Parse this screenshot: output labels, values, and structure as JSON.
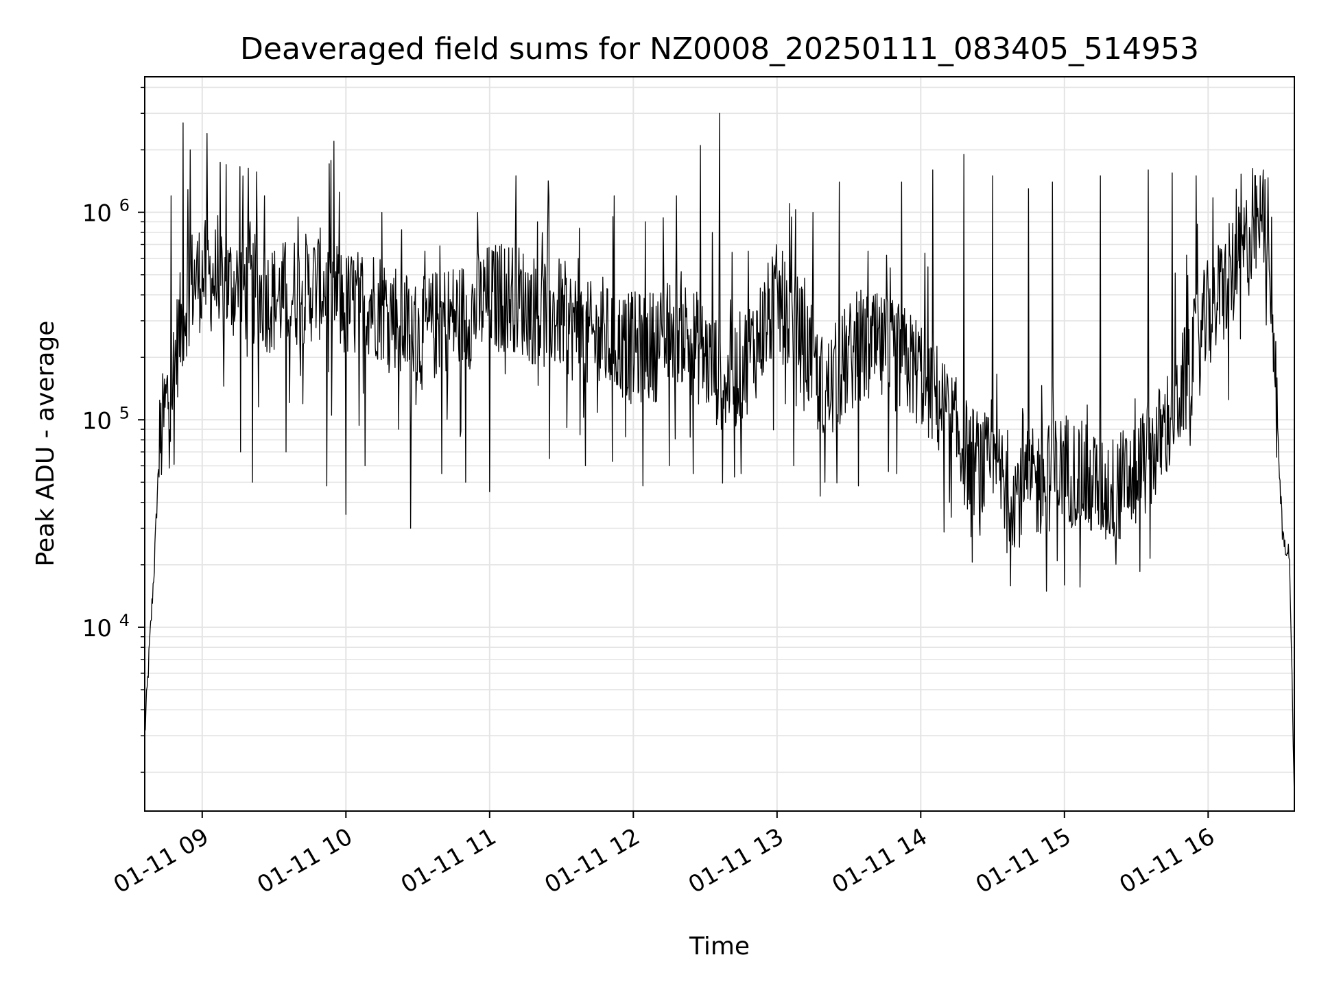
{
  "chart_data": {
    "type": "line",
    "title": "Deaveraged field sums for NZ0008_20250111_083405_514953",
    "xlabel": "Time",
    "ylabel": "Peak ADU - average",
    "x_scale": "time",
    "y_scale": "log",
    "xlim": [
      "2025-01-11 08:36",
      "2025-01-11 16:36"
    ],
    "ylim": [
      1300,
      4500000
    ],
    "grid": true,
    "x_ticks": [
      "01-11 09",
      "01-11 10",
      "01-11 11",
      "01-11 12",
      "01-11 13",
      "01-11 14",
      "01-11 15",
      "01-11 16"
    ],
    "y_ticks": [
      {
        "value": 10000,
        "base": "10",
        "exp": "4"
      },
      {
        "value": 100000,
        "base": "10",
        "exp": "5"
      },
      {
        "value": 1000000,
        "base": "10",
        "exp": "6"
      }
    ],
    "series": [
      {
        "color": "#000000",
        "baseline": [
          [
            "08:36",
            3000
          ],
          [
            "08:38",
            8000
          ],
          [
            "08:40",
            20000
          ],
          [
            "08:42",
            70000
          ],
          [
            "08:45",
            120000
          ],
          [
            "08:48",
            170000
          ],
          [
            "08:50",
            250000
          ],
          [
            "08:55",
            450000
          ],
          [
            "09:00",
            500000
          ],
          [
            "09:05",
            480000
          ],
          [
            "09:10",
            450000
          ],
          [
            "09:20",
            430000
          ],
          [
            "09:30",
            380000
          ],
          [
            "09:40",
            420000
          ],
          [
            "09:50",
            450000
          ],
          [
            "10:00",
            350000
          ],
          [
            "10:10",
            380000
          ],
          [
            "10:20",
            330000
          ],
          [
            "10:30",
            250000
          ],
          [
            "10:40",
            300000
          ],
          [
            "10:50",
            320000
          ],
          [
            "11:00",
            380000
          ],
          [
            "11:10",
            400000
          ],
          [
            "11:20",
            330000
          ],
          [
            "11:30",
            320000
          ],
          [
            "11:40",
            250000
          ],
          [
            "11:50",
            240000
          ],
          [
            "12:00",
            220000
          ],
          [
            "12:10",
            230000
          ],
          [
            "12:20",
            280000
          ],
          [
            "12:30",
            200000
          ],
          [
            "12:40",
            150000
          ],
          [
            "12:50",
            220000
          ],
          [
            "13:00",
            380000
          ],
          [
            "13:10",
            250000
          ],
          [
            "13:20",
            130000
          ],
          [
            "13:30",
            200000
          ],
          [
            "13:40",
            220000
          ],
          [
            "13:50",
            200000
          ],
          [
            "14:00",
            170000
          ],
          [
            "14:10",
            110000
          ],
          [
            "14:20",
            65000
          ],
          [
            "14:30",
            55000
          ],
          [
            "14:40",
            45000
          ],
          [
            "14:50",
            50000
          ],
          [
            "15:00",
            60000
          ],
          [
            "15:10",
            50000
          ],
          [
            "15:20",
            45000
          ],
          [
            "15:30",
            55000
          ],
          [
            "15:40",
            80000
          ],
          [
            "15:50",
            150000
          ],
          [
            "16:00",
            320000
          ],
          [
            "16:10",
            500000
          ],
          [
            "16:20",
            850000
          ],
          [
            "16:25",
            850000
          ],
          [
            "16:30",
            50000
          ],
          [
            "16:31",
            28000
          ],
          [
            "16:34",
            22000
          ],
          [
            "16:36",
            1400
          ]
        ],
        "spikes": [
          [
            "08:47",
            1200000
          ],
          [
            "08:52",
            2700000
          ],
          [
            "08:55",
            2000000
          ],
          [
            "09:02",
            2400000
          ],
          [
            "09:10",
            1700000
          ],
          [
            "09:20",
            900000
          ],
          [
            "09:26",
            1200000
          ],
          [
            "09:40",
            950000
          ],
          [
            "09:55",
            2200000
          ],
          [
            "10:15",
            1000000
          ],
          [
            "10:33",
            650000
          ],
          [
            "10:40",
            700000
          ],
          [
            "10:55",
            1000000
          ],
          [
            "11:05",
            700000
          ],
          [
            "11:11",
            1500000
          ],
          [
            "11:20",
            900000
          ],
          [
            "11:37",
            600000
          ],
          [
            "11:52",
            1200000
          ],
          [
            "12:05",
            900000
          ],
          [
            "12:18",
            1200000
          ],
          [
            "12:28",
            2100000
          ],
          [
            "12:33",
            800000
          ],
          [
            "12:36",
            3000000
          ],
          [
            "12:48",
            650000
          ],
          [
            "13:06",
            950000
          ],
          [
            "13:15",
            1000000
          ],
          [
            "13:26",
            1400000
          ],
          [
            "13:38",
            650000
          ],
          [
            "13:52",
            1400000
          ],
          [
            "14:05",
            1600000
          ],
          [
            "14:18",
            1900000
          ],
          [
            "14:30",
            1500000
          ],
          [
            "14:45",
            1300000
          ],
          [
            "14:55",
            1400000
          ],
          [
            "15:05",
            1400000
          ],
          [
            "15:15",
            1500000
          ],
          [
            "15:25",
            1300000
          ],
          [
            "15:35",
            1600000
          ],
          [
            "15:45",
            1550000
          ],
          [
            "15:55",
            1500000
          ],
          [
            "16:23",
            1600000
          ]
        ],
        "dips": [
          [
            "09:16",
            70000
          ],
          [
            "09:21",
            50000
          ],
          [
            "09:35",
            70000
          ],
          [
            "09:52",
            48000
          ],
          [
            "10:00",
            35000
          ],
          [
            "10:08",
            60000
          ],
          [
            "10:22",
            90000
          ],
          [
            "10:27",
            30000
          ],
          [
            "10:40",
            55000
          ],
          [
            "10:50",
            50000
          ],
          [
            "11:00",
            45000
          ],
          [
            "11:25",
            65000
          ],
          [
            "11:40",
            60000
          ],
          [
            "12:04",
            48000
          ],
          [
            "12:15",
            60000
          ],
          [
            "12:25",
            55000
          ],
          [
            "12:45",
            55000
          ],
          [
            "13:07",
            60000
          ],
          [
            "13:20",
            50000
          ],
          [
            "13:34",
            48000
          ],
          [
            "13:50",
            55000
          ],
          [
            "14:12",
            40000
          ],
          [
            "14:35",
            30000
          ],
          [
            "14:42",
            28000
          ],
          [
            "15:05",
            33000
          ],
          [
            "15:10",
            32000
          ],
          [
            "15:25",
            38000
          ]
        ]
      }
    ]
  }
}
